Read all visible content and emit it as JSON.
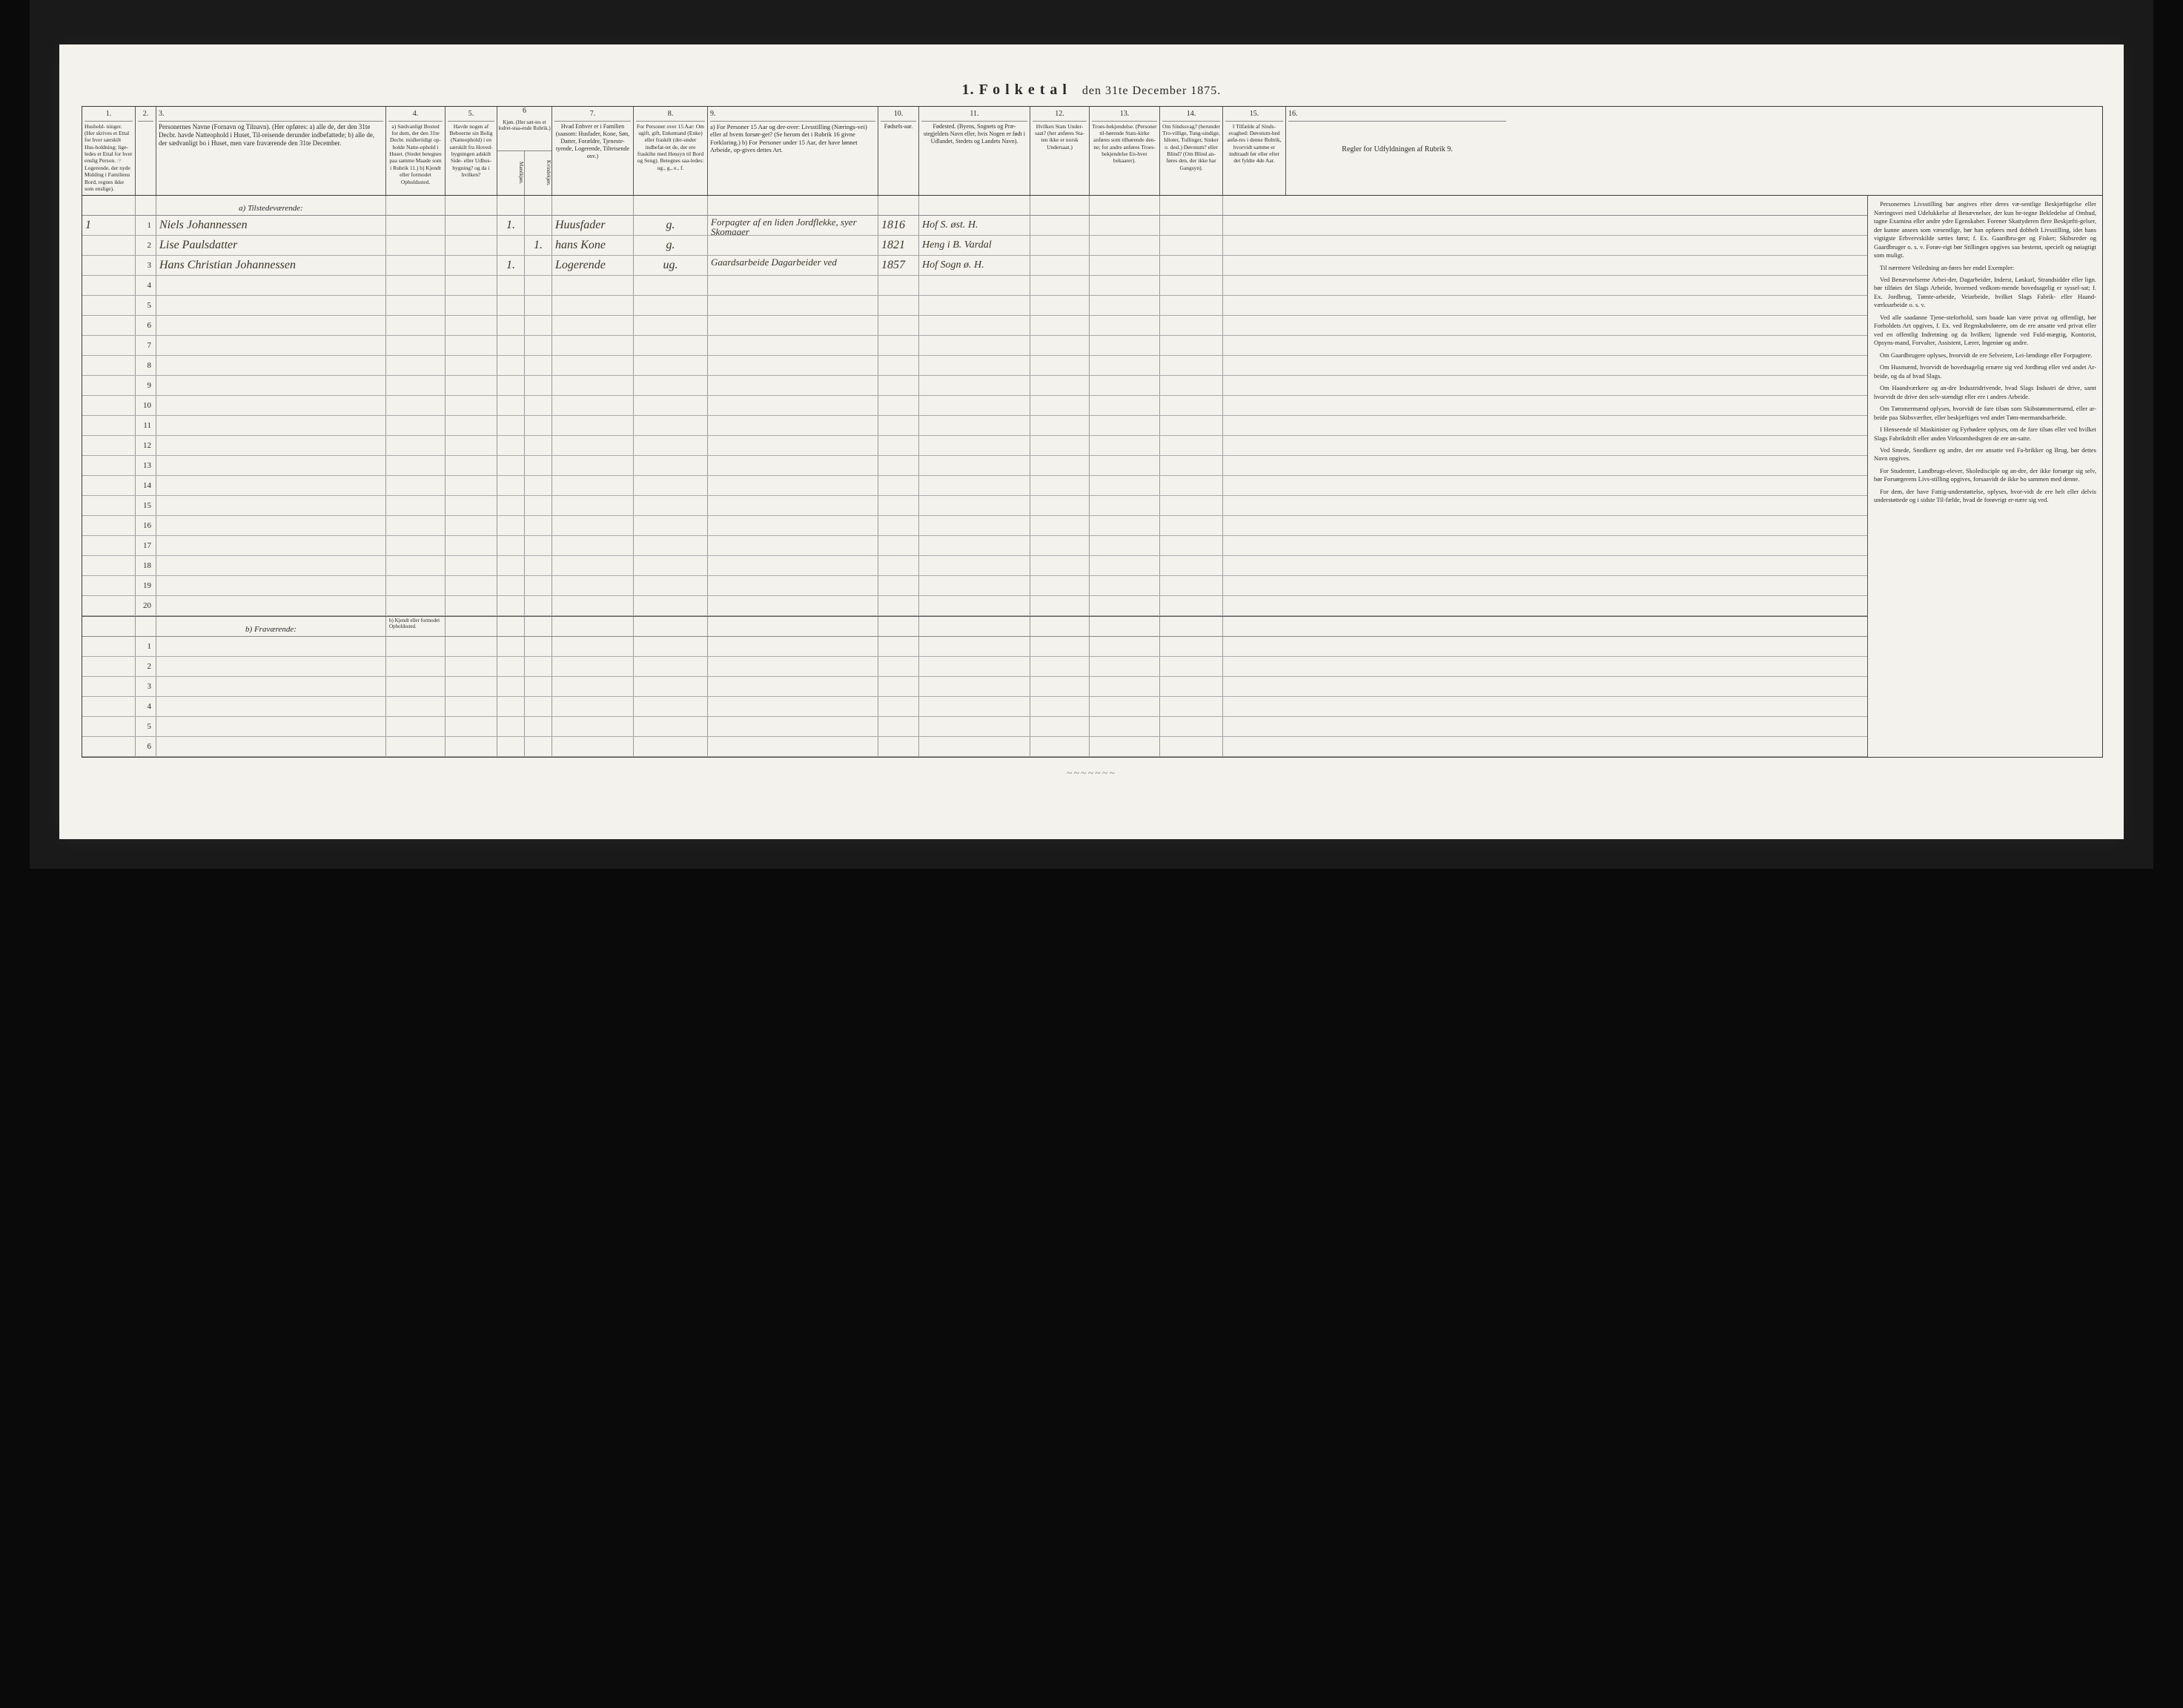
{
  "title_prefix": "1.  F o l k e t a l",
  "title_suffix": "den 31te December 1875.",
  "columns": {
    "c1": {
      "num": "1.",
      "text": "Hushold-\nninger.\n(Her skrives et Ettal for hver særskilt Hus-holdning; lige-ledes et Ettal for hver enslig Person.\n☞ Logerende, der nyde Midding i Familiens Bord, regnes ikke som enslige)."
    },
    "c2": {
      "num": "2.",
      "text": ""
    },
    "c3": {
      "num": "3.",
      "text": "Personernes Navne (Fornavn og Tilnavn).\n(Her opføres:\na) alle de, der den 31te Decbr. havde Natteophold i Huset, Til-reisende derunder indbefattede;\nb) alle de, der sædvanligt bo i Huset, men vare fraværende den 31te December."
    },
    "c4": {
      "num": "4.",
      "text": "a) Sædvanligt Bosted for dem, der den 31te Decbr. midlertidigt op-holde Natte-ophold i Huset. (Stedet betegnes paa samme Maade som i Rubrik 11.)\nb) Kjendt eller formodet Opholdssted."
    },
    "c5": {
      "num": "5.",
      "text": "Havde nogen af Beboerne sin Bolig (Natteophold) i en særskilt fra Hoved-bygningen adskilt Side- eller Udhus-bygning? og da i hvilken?"
    },
    "c6": {
      "num": "6",
      "text": "Kjøn.\n(Her sæt-tes et lodret-staa-ende Rubrik.)",
      "sub_a": "Mandkjøn.",
      "sub_b": "Kvindekjøn."
    },
    "c7": {
      "num": "7.",
      "text": "Hvad Enhver er i Familien\n(saasom: Husfader, Kone, Søn, Datter, Forældre, Tjeneste-tyende, Logerende, Tilreisende osv.)"
    },
    "c8": {
      "num": "8.",
      "text": "For Personer over 15 Aar: Om ugift, gift, Enkemand (Enke) eller fraskilt (der-under indbefat-tet de, der ere fraskilte med Hensyn til Bord og Seng).\nBetegnes saa-ledes:\nug., g., e., f."
    },
    "c9": {
      "num": "9.",
      "text": "a) For Personer 15 Aar og der-over: Livsstilling (Nærings-vei) eller af hvem forsør-get? (Se herom det i Rubrik 16 givne Forklaring.)\nb) For Personer under 15 Aar, der have lønnet Arbeide, op-gives dettes Art."
    },
    "c10": {
      "num": "10.",
      "text": "Fødsels-aar."
    },
    "c11": {
      "num": "11.",
      "text": "Fødested.\n(Byens, Sognets og Præ-stegjeldets Navn eller, hvis Nogen er født i Udlandet, Stedets og Landets Navn)."
    },
    "c12": {
      "num": "12.",
      "text": "Hvilken Stats Under-saat?\n(her anføres Sta-ten ikke er norsk Undersaat.)"
    },
    "c13": {
      "num": "13.",
      "text": "Troes-bekjendelse.\n(Personer til-hørende Stats-kirke anføres som tilhørende den-ne; for andre anføres Troes-bekjendelse En-hver bekaarer)."
    },
    "c14": {
      "num": "14.",
      "text": "Om Sindssvag?\n(herunder Tro-villige, Tung-sindige, Idioter, Tullinger, Sinker o. desl.)\nDøvstum? eller Blind?\n(Om Blind an-føres den, der ikke har Gangsyn)."
    },
    "c15": {
      "num": "15.",
      "text": "I Tilfælde af Sinds-svaghed: Døvstum-hed anfø-res i denne Rubrik, hvorvidt samme er indtraadt før eller efter det fyldte 4de Aar."
    },
    "c16": {
      "num": "16.",
      "text": "Regler for Udfyldningen\naf\nRubrik 9."
    }
  },
  "section_a": "a) Tilstedeværende:",
  "section_b": "b) Fraværende:",
  "section_b_col4": "b) Kjendt eller formodet Opholdssted.",
  "rows": [
    {
      "n": "1",
      "hh": "1",
      "name": "Niels Johannessen",
      "sex_m": "1.",
      "rel": "Huusfader",
      "civ": "g.",
      "occ": "Forpagter af en liden Jordflekke, syer Skomager",
      "yr": "1816",
      "bp": "Hof S. øst. H."
    },
    {
      "n": "2",
      "hh": "",
      "name": "Lise Paulsdatter",
      "sex_f": "1.",
      "rel": "hans Kone",
      "civ": "g.",
      "occ": "",
      "yr": "1821",
      "bp": "Heng i B. Vardal"
    },
    {
      "n": "3",
      "hh": "",
      "name": "Hans Christian Johannessen",
      "sex_m": "1.",
      "rel": "Logerende",
      "civ": "ug.",
      "occ": "Gaardsarbeide Dagarbeider ved",
      "yr": "1857",
      "bp": "Hof Sogn ø. H."
    },
    {
      "n": "4"
    },
    {
      "n": "5"
    },
    {
      "n": "6"
    },
    {
      "n": "7"
    },
    {
      "n": "8"
    },
    {
      "n": "9"
    },
    {
      "n": "10"
    },
    {
      "n": "11"
    },
    {
      "n": "12"
    },
    {
      "n": "13"
    },
    {
      "n": "14"
    },
    {
      "n": "15"
    },
    {
      "n": "16"
    },
    {
      "n": "17"
    },
    {
      "n": "18"
    },
    {
      "n": "19"
    },
    {
      "n": "20"
    }
  ],
  "rows_b": [
    {
      "n": "1"
    },
    {
      "n": "2"
    },
    {
      "n": "3"
    },
    {
      "n": "4"
    },
    {
      "n": "5"
    },
    {
      "n": "6"
    }
  ],
  "notes": [
    "Personernes Livsstilling bør angives efter deres væ-sentlige Beskjæftigelse eller Næringsvei med Udelukkelse af Benævnelser, der kun be-tegne Bekledelse af Ombud, tagne Examina eller andre ydre Egenskaber. Forener Skattyderen flere Beskjæfti-gelser, der kunne ansees som væsentlige, bør han opføres med dobbelt Livsstilling, idet hans vigtigste Erhvervskilde sættes først; f. Ex. Gaardbru-ger og Fisker; Skibsreder og Gaardbruger o. s. v. Forøv-rigt bør Stillingen opgives saa bestemt, specielt og nøiagtigt som muligt.",
    "Til nærmere Veiledning an-føres her endel Exempler:",
    "Ved Benævnelserne Arbei-der, Dagarbeider, Inderst, Løskarl, Strandsidder eller lign. bør tilføies det Slags Arbeide, hvormed vedkom-mende hovedsagelig er syssel-sat; f. Ex. Jordbrug, Tømte-arbeide, Veiarbeide, hvilket Slags Fabrik- eller Haand-værksarbeide o. s. v.",
    "Ved alle saadanne Tjene-steforhold, som baade kan være privat og offentligt, bør Forholdets Art opgives, f. Ex. ved Regnskabsførere, om de ere ansatte ved privat eller ved en offentlig Indretning og da hvilken; lignende ved Fuld-mægtig, Kontorist, Opsyns-mand, Forvalter, Assistent, Lærer, Ingeniør og andre.",
    "Om Gaardbrugere oplyses, hvorvidt de ere Selveiere, Lei-lændinge eller Forpagtere.",
    "Om Husmænd, hvorvidt de hovedsagelig ernære sig ved Jordbrug eller ved andet Ar-beide, og da af hvad Slags.",
    "Om Haandværkere og an-dre Industridrivende, hvad Slags Industri de drive, samt hvorvidt de drive den selv-stændigt eller ere i andres Arbeide.",
    "Om Tømmermænd oplyses, hvorvidt de fare tilsøs som Skibstømmermænd, eller ar-beide paa Skibsværfter, eller beskjæftiges ved andet Tøm-mermandsarbeide.",
    "I Henseende til Maskinister og Fyrbødere oplyses, om de fare tilsøs eller ved hvilket Slags Fabrikdrift eller anden Virksomhedsgren de ere an-satte.",
    "Ved Smede, Snedkere og andre, der ere ansatte ved Fa-brikker og Brug, bør dettes Navn opgives.",
    "For Studenter, Landbrugs-elever, Skoledisciple og an-dre, der ikke forsørge sig selv, bør Forsørgerens Livs-stilling opgives, forsaavidt de ikke bo sammen med denne.",
    "For dem, der have Fattig-understøttelse, oplyses, hvor-vidt de ere helt eller delvis understøttede og i sidste Til-fælde, hvad de forøvrigt er-nære sig ved."
  ],
  "scribble": "~~~~~~~"
}
